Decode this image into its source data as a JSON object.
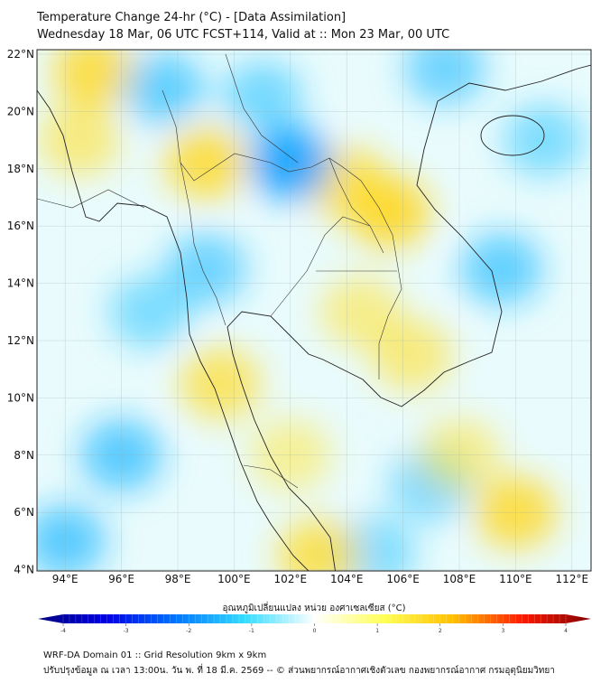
{
  "title": "Temperature Change 24-hr (°C) - [Data Assimilation]",
  "subtitle": "Wednesday 18 Mar, 06 UTC FCST+114, Valid at :: Mon 23 Mar, 00 UTC",
  "map": {
    "lon_range": [
      93,
      112.7
    ],
    "lat_range": [
      4,
      22.15
    ],
    "lon_ticks": [
      {
        "v": 94,
        "label": "94°E"
      },
      {
        "v": 96,
        "label": "96°E"
      },
      {
        "v": 98,
        "label": "98°E"
      },
      {
        "v": 100,
        "label": "100°E"
      },
      {
        "v": 102,
        "label": "102°E"
      },
      {
        "v": 104,
        "label": "104°E"
      },
      {
        "v": 106,
        "label": "106°E"
      },
      {
        "v": 108,
        "label": "108°E"
      },
      {
        "v": 110,
        "label": "110°E"
      },
      {
        "v": 112,
        "label": "112°E"
      }
    ],
    "lat_ticks": [
      {
        "v": 22,
        "label": "22°N"
      },
      {
        "v": 20,
        "label": "20°N"
      },
      {
        "v": 18,
        "label": "18°N"
      },
      {
        "v": 16,
        "label": "16°N"
      },
      {
        "v": 14,
        "label": "14°N"
      },
      {
        "v": 12,
        "label": "12°N"
      },
      {
        "v": 10,
        "label": "10°N"
      },
      {
        "v": 8,
        "label": "8°N"
      },
      {
        "v": 6,
        "label": "6°N"
      },
      {
        "v": 4,
        "label": "4°N"
      }
    ],
    "anomalies": [
      {
        "lon": 105.5,
        "lat": 16.5,
        "v": 1.1
      },
      {
        "lon": 104,
        "lat": 17.5,
        "v": 0.9
      },
      {
        "lon": 99,
        "lat": 18.2,
        "v": 1.0
      },
      {
        "lon": 95,
        "lat": 21.4,
        "v": 1.0
      },
      {
        "lon": 94.5,
        "lat": 19,
        "v": 0.6
      },
      {
        "lon": 102,
        "lat": 18.2,
        "v": -1.6
      },
      {
        "lon": 97.5,
        "lat": 20.8,
        "v": -0.9
      },
      {
        "lon": 101,
        "lat": 20.5,
        "v": -0.7
      },
      {
        "lon": 96,
        "lat": 8,
        "v": -1.0
      },
      {
        "lon": 94,
        "lat": 5,
        "v": -1.0
      },
      {
        "lon": 99,
        "lat": 14.5,
        "v": -0.8
      },
      {
        "lon": 97,
        "lat": 13,
        "v": -0.6
      },
      {
        "lon": 109.5,
        "lat": 14.5,
        "v": -0.9
      },
      {
        "lon": 107,
        "lat": 7,
        "v": -0.7
      },
      {
        "lon": 105,
        "lat": 4.6,
        "v": -0.6
      },
      {
        "lon": 111,
        "lat": 19,
        "v": -0.6
      },
      {
        "lon": 107.5,
        "lat": 21.5,
        "v": -0.8
      },
      {
        "lon": 110,
        "lat": 6,
        "v": 1.0
      },
      {
        "lon": 103,
        "lat": 4.5,
        "v": 0.9
      },
      {
        "lon": 99.5,
        "lat": 10.5,
        "v": 0.8
      },
      {
        "lon": 104.5,
        "lat": 13,
        "v": 0.5
      },
      {
        "lon": 106.3,
        "lat": 11.5,
        "v": 0.6
      },
      {
        "lon": 102,
        "lat": 8,
        "v": 0.4
      },
      {
        "lon": 108,
        "lat": 8,
        "v": 0.5
      }
    ]
  },
  "colorbar": {
    "label": "อุณหภูมิเปลี่ยนแปลง หน่วย องศาเซลเซียส (°C)",
    "ticks": [
      "-4",
      "-3",
      "-2",
      "-1",
      "0",
      "1",
      "2",
      "3",
      "4"
    ],
    "colors": [
      "#00007f",
      "#0000e6",
      "#0066ff",
      "#00ccff",
      "#ffffff",
      "#ffff44",
      "#ffbb00",
      "#ff2200",
      "#7f0000"
    ]
  },
  "footer": {
    "line1": "WRF-DA Domain 01 :: Grid Resolution 9km x 9km",
    "line2": "ปรับปรุงข้อมูล ณ เวลา 13:00น. วัน พ. ที่ 18 มี.ค. 2569 -- © ส่วนพยากรณ์อากาศเชิงตัวเลข กองพยากรณ์อากาศ กรมอุตุนิยมวิทยา"
  }
}
